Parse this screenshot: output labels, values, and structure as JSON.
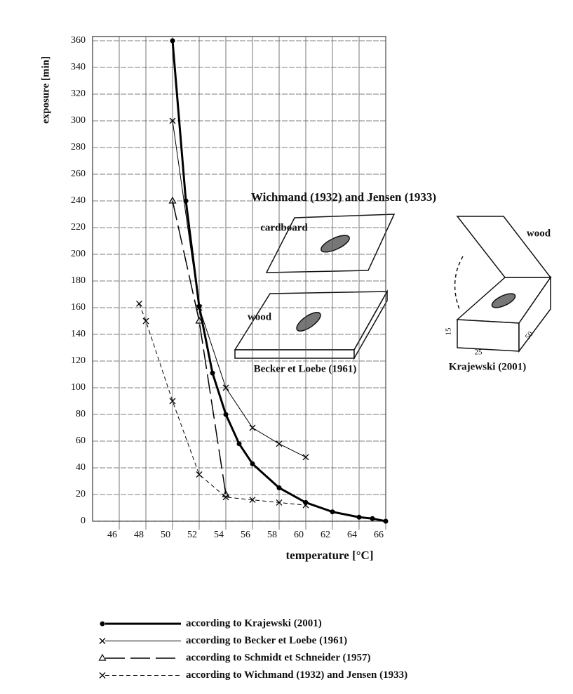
{
  "chart_data": {
    "type": "line",
    "x_label": "temperature [°C]",
    "y_label": "exposure [min]",
    "xlim": [
      44,
      66
    ],
    "xticks": [
      46,
      48,
      50,
      52,
      54,
      56,
      58,
      60,
      62,
      64,
      66
    ],
    "ylim": [
      0,
      360
    ],
    "yticks": [
      0,
      20,
      40,
      60,
      80,
      100,
      120,
      140,
      160,
      180,
      200,
      220,
      240,
      260,
      280,
      300,
      320,
      340,
      360
    ],
    "grid": true,
    "series": [
      {
        "name": "according to Krajewski (2001)",
        "color": "#000000",
        "dash": "solid",
        "width": 3,
        "marker": "dot",
        "x": [
          50,
          51,
          52,
          53,
          54,
          55,
          56,
          58,
          60,
          62,
          64,
          65,
          66
        ],
        "values": [
          360,
          240,
          161,
          111,
          80,
          58,
          43,
          25,
          14,
          7,
          3,
          2,
          0
        ]
      },
      {
        "name": "according to Becker et Loebe (1961)",
        "color": "#000000",
        "dash": "solid",
        "width": 1,
        "marker": "x",
        "x": [
          50,
          52,
          54,
          56,
          58,
          60
        ],
        "values": [
          300,
          160,
          100,
          70,
          58,
          48
        ]
      },
      {
        "name": "according to Schmidt et Schneider (1957)",
        "color": "#000000",
        "dash": "long",
        "width": 1.5,
        "marker": "triangle",
        "x": [
          50,
          52,
          54
        ],
        "values": [
          240,
          150,
          20
        ]
      },
      {
        "name": "according to Wichmand (1932) and Jensen (1933)",
        "color": "#000000",
        "dash": "short",
        "width": 1,
        "marker": "x",
        "x": [
          47.5,
          48,
          50,
          52,
          54,
          56,
          58,
          60
        ],
        "values": [
          163,
          150,
          90,
          35,
          18,
          16,
          14,
          12
        ]
      }
    ],
    "annotations": [
      "Wichmand (1932) and Jensen (1933)",
      "cardboard",
      "wood",
      "Becker et Loebe (1961)",
      "wood",
      "Krajewski (2001)",
      "15",
      "25",
      "50"
    ]
  }
}
